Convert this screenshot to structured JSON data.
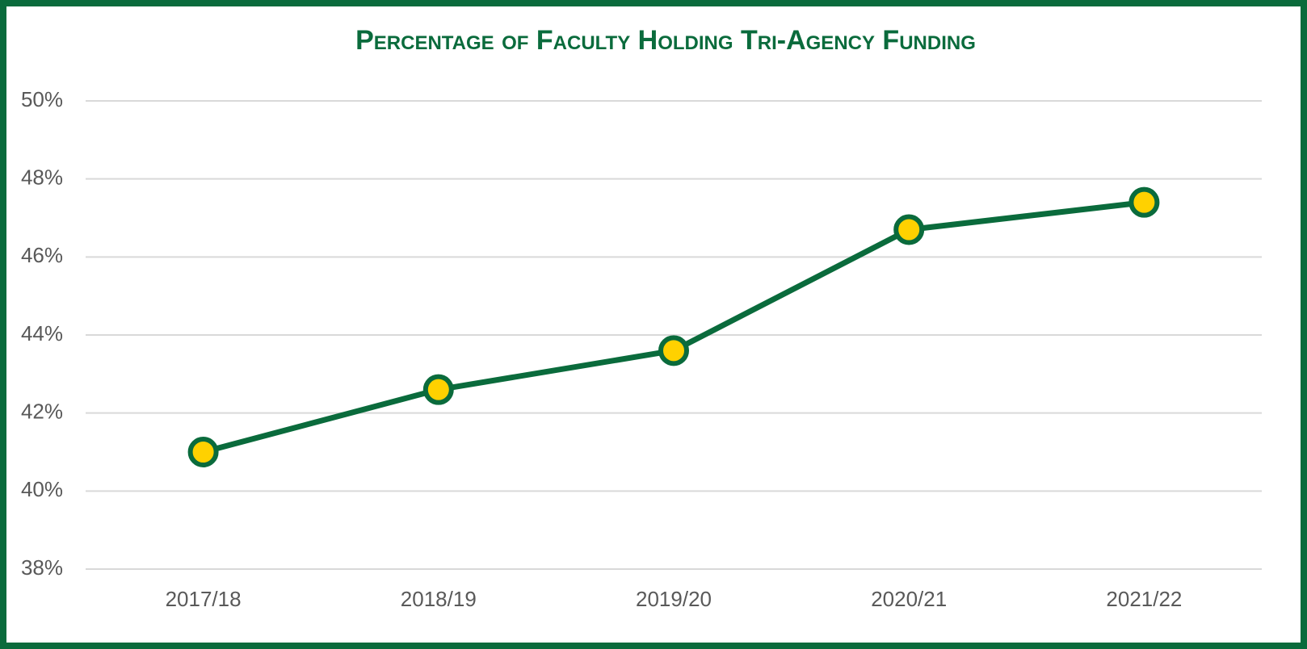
{
  "chart_data": {
    "type": "line",
    "title": "Percentage of Faculty Holding Tri-Agency Funding",
    "categories": [
      "2017/18",
      "2018/19",
      "2019/20",
      "2020/21",
      "2021/22"
    ],
    "values": [
      41.0,
      42.6,
      43.6,
      46.7,
      47.4
    ],
    "color": "#0a6b3c",
    "marker_color": "#ffd100",
    "ylim": [
      38,
      50
    ],
    "yticks": [
      {
        "value": 38,
        "label": "38%"
      },
      {
        "value": 40,
        "label": "40%"
      },
      {
        "value": 42,
        "label": "42%"
      },
      {
        "value": 44,
        "label": "44%"
      },
      {
        "value": 46,
        "label": "46%"
      },
      {
        "value": 48,
        "label": "48%"
      },
      {
        "value": 50,
        "label": "50%"
      }
    ],
    "grid": true
  }
}
